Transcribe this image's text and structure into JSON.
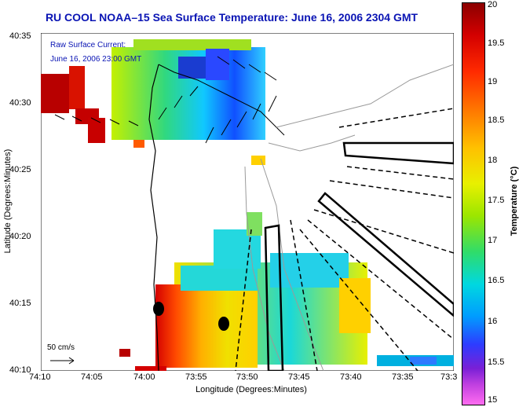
{
  "title": "RU COOL  NOAA–15  Sea Surface Temperature:  June 16, 2006 2304 GMT",
  "xlabel": "Longitude (Degrees:Minutes)",
  "ylabel": "Latitude (Degrees:Minutes)",
  "colorbar": {
    "label": "Temperature (°C)",
    "ticks": [
      "20",
      "19.5",
      "19",
      "18.5",
      "18",
      "17.5",
      "17",
      "16.5",
      "16",
      "15.5",
      "15"
    ],
    "range": [
      15,
      20
    ]
  },
  "yticks": [
    "40:35",
    "40:30",
    "40:25",
    "40:20",
    "40:15",
    "40:10"
  ],
  "xticks": [
    "74:10",
    "74:05",
    "74:00",
    "73:55",
    "73:50",
    "73:45",
    "73:40",
    "73:35",
    "73:3"
  ],
  "overlay": {
    "current_label": "Raw Surface Current:",
    "current_date": "June 16, 2006 23:00 GMT",
    "scale_label": "50 cm/s"
  },
  "colors": {
    "title": "#0a14b4",
    "overlay_text": "#0a14b4",
    "land_mask": "#ffffff",
    "coastline": "#000000",
    "bathymetry": "#9a9a9a"
  }
}
